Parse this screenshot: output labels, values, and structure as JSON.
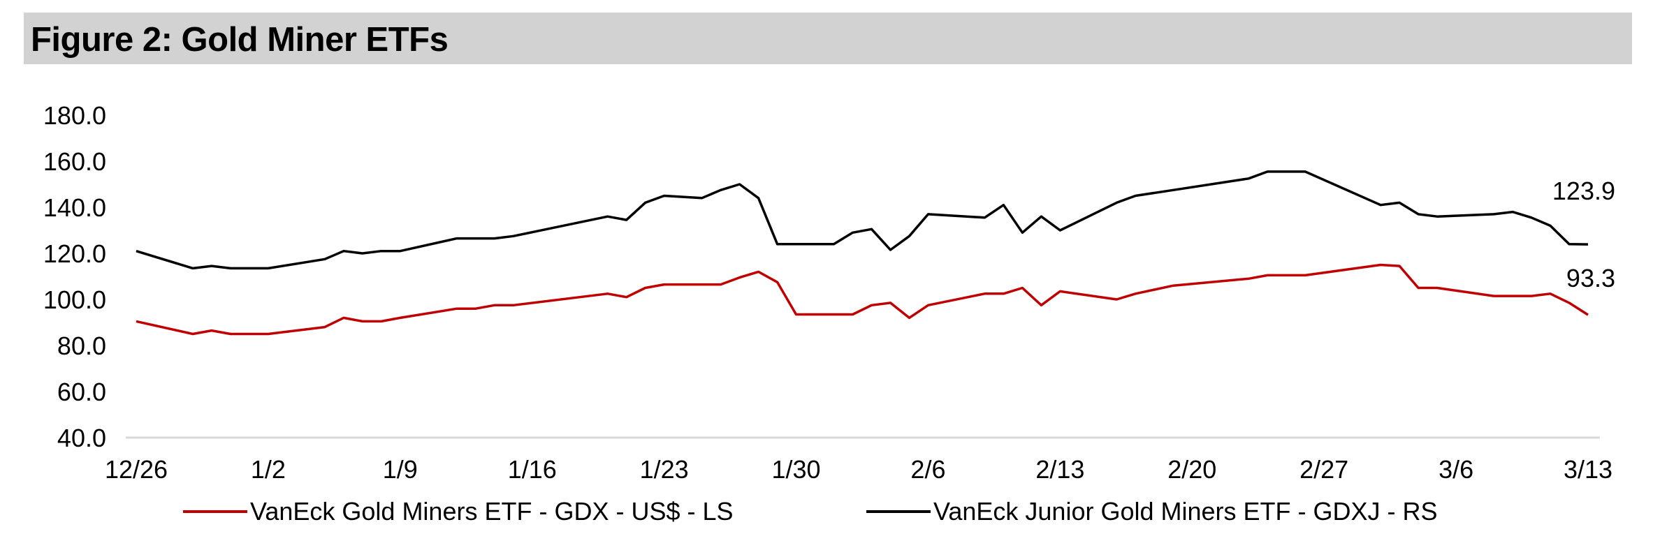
{
  "title": "Figure 2: Gold Miner ETFs",
  "colors": {
    "gdx": "#c00000",
    "gdxj": "#000000",
    "axis": "#d9d9d9",
    "title_bg": "#d2d2d2"
  },
  "chart_data": {
    "type": "line",
    "title": "Figure 2: Gold Miner ETFs",
    "xlabel": "",
    "ylabel": "",
    "ylim": [
      40,
      180
    ],
    "y_ticks": [
      "180.0",
      "160.0",
      "140.0",
      "120.0",
      "100.0",
      "80.0",
      "60.0",
      "40.0"
    ],
    "y_tick_values": [
      180,
      160,
      140,
      120,
      100,
      80,
      60,
      40
    ],
    "x_tick_labels": [
      "12/26",
      "1/2",
      "1/9",
      "1/16",
      "1/23",
      "1/30",
      "2/6",
      "2/13",
      "2/20",
      "2/27",
      "3/6",
      "3/13"
    ],
    "x_range_days": [
      0,
      77
    ],
    "x_tick_days": [
      0,
      7,
      14,
      21,
      28,
      35,
      42,
      49,
      56,
      63,
      70,
      77
    ],
    "grid": false,
    "legend_position": "bottom",
    "series": [
      {
        "name": "VanEck Gold Miners ETF   - GDX  - US$ - LS",
        "color": "#c00000",
        "x": [
          0,
          3,
          4,
          5,
          7,
          10,
          11,
          12,
          13,
          14,
          17,
          18,
          19,
          20,
          25,
          26,
          27,
          28,
          30,
          31,
          32,
          33,
          34,
          35,
          37,
          38,
          39,
          40,
          41,
          42,
          45,
          46,
          47,
          48,
          49,
          52,
          53,
          55,
          59,
          60,
          61,
          62,
          66,
          67,
          68,
          69,
          72,
          73,
          74,
          75,
          76,
          77
        ],
        "values": [
          90.5,
          85,
          86.5,
          85,
          85,
          88,
          92,
          90.5,
          90.5,
          92,
          96,
          96,
          97.5,
          97.5,
          102.5,
          101,
          105,
          106.5,
          106.5,
          106.5,
          109.5,
          112,
          107.5,
          93.5,
          93.5,
          93.5,
          97.5,
          98.5,
          92,
          97.5,
          102.5,
          102.5,
          105,
          97.5,
          103.5,
          100,
          102.5,
          106,
          109,
          110.5,
          110.5,
          110.5,
          115,
          114.5,
          105,
          105,
          101.5,
          101.5,
          101.5,
          102.5,
          98.5,
          93.3
        ],
        "end_label": "93.3"
      },
      {
        "name": "VanEck Junior Gold Miners ETF - GDXJ - RS",
        "color": "#000000",
        "x": [
          0,
          3,
          4,
          5,
          7,
          10,
          11,
          12,
          13,
          14,
          17,
          18,
          19,
          20,
          25,
          26,
          27,
          28,
          30,
          31,
          32,
          33,
          34,
          35,
          37,
          38,
          39,
          40,
          41,
          42,
          45,
          46,
          47,
          48,
          49,
          52,
          53,
          55,
          59,
          60,
          61,
          62,
          66,
          67,
          68,
          69,
          72,
          73,
          74,
          75,
          76,
          77
        ],
        "values": [
          121,
          113.5,
          114.5,
          113.5,
          113.5,
          117.5,
          121,
          120,
          121,
          121,
          126.5,
          126.5,
          126.5,
          127.5,
          136,
          134.5,
          142,
          145,
          144,
          147.5,
          150,
          144,
          124,
          124,
          124,
          129,
          130.5,
          121.5,
          127.5,
          137,
          135.5,
          141,
          129,
          136,
          130,
          142,
          145,
          147.5,
          152.5,
          155.5,
          155.5,
          155.5,
          141,
          142,
          137,
          136,
          137,
          138,
          135.5,
          132,
          124,
          123.9
        ],
        "end_label": "123.9"
      }
    ]
  }
}
